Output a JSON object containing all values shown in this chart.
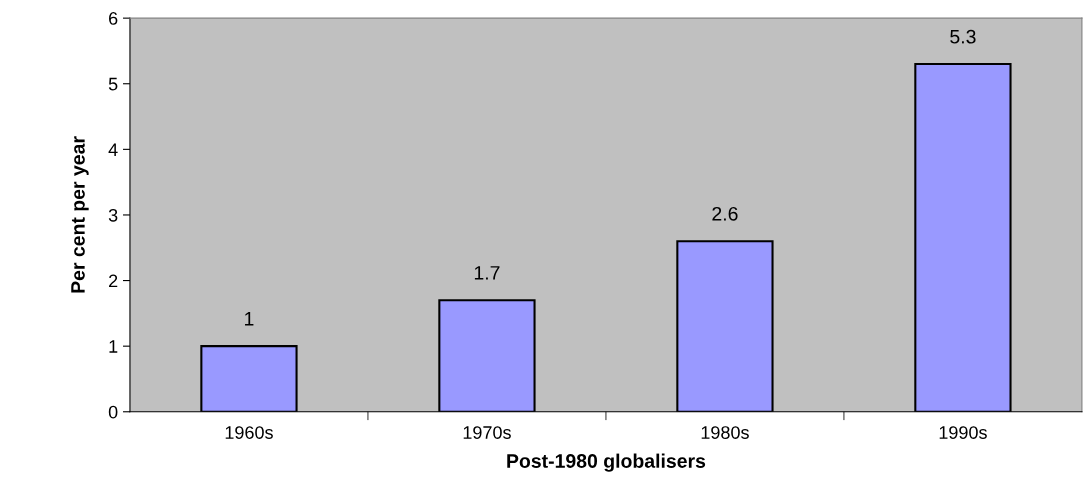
{
  "chart_data": {
    "type": "bar",
    "xlabel": "Post-1980 globalisers",
    "ylabel": "Per cent per year",
    "categories": [
      "1960s",
      "1970s",
      "1980s",
      "1990s"
    ],
    "values": [
      1,
      1.7,
      2.6,
      5.3
    ],
    "color": "#9999ff",
    "ylim": [
      0,
      6
    ],
    "yticks": [
      0,
      1,
      2,
      3,
      4,
      5,
      6
    ],
    "grid": false,
    "legend": false,
    "data_labels": true
  }
}
